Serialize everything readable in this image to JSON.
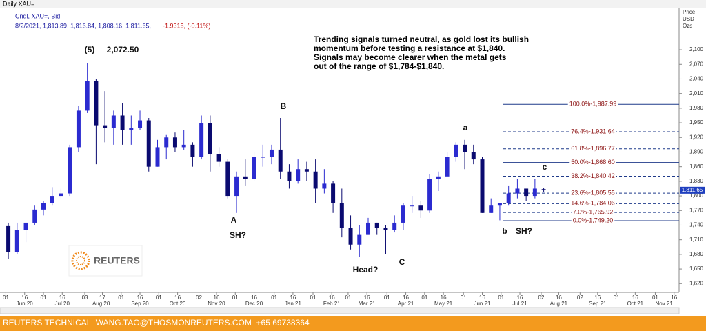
{
  "window_title": "Daily XAU=",
  "legend": {
    "study": "Cndl, XAU=, Bid",
    "quote": "8/2/2021, 1,813.89, 1,816.84, 1,808.16, 1,811.65,",
    "change": "-1.9315, (-0.11%)"
  },
  "logo": "REUTERS",
  "footer": "REUTERS TECHNICAL  WANG.TAO@THOSMONREUTERS.COM  +65 69738364",
  "chart_data": {
    "type": "candlestick",
    "up_color": "#2b2bd0",
    "down_color": "#0a0a70",
    "y_axis_title": [
      "Price",
      "USD",
      "Ozs"
    ],
    "xlim": [
      "2020-05-29",
      "2021-11-20"
    ],
    "ylim": [
      1602,
      2185
    ],
    "x": [
      "2020-06-01",
      "2020-06-08",
      "2020-06-15",
      "2020-06-22",
      "2020-06-29",
      "2020-07-06",
      "2020-07-13",
      "2020-07-20",
      "2020-07-27",
      "2020-08-03",
      "2020-08-10",
      "2020-08-17",
      "2020-08-24",
      "2020-08-31",
      "2020-09-07",
      "2020-09-14",
      "2020-09-21",
      "2020-09-28",
      "2020-10-05",
      "2020-10-12",
      "2020-10-19",
      "2020-10-26",
      "2020-11-02",
      "2020-11-09",
      "2020-11-16",
      "2020-11-23",
      "2020-11-30",
      "2020-12-07",
      "2020-12-14",
      "2020-12-21",
      "2020-12-28",
      "2021-01-04",
      "2021-01-11",
      "2021-01-18",
      "2021-01-25",
      "2021-02-01",
      "2021-02-08",
      "2021-02-15",
      "2021-02-22",
      "2021-03-01",
      "2021-03-08",
      "2021-03-15",
      "2021-03-22",
      "2021-03-29",
      "2021-04-05",
      "2021-04-12",
      "2021-04-19",
      "2021-04-26",
      "2021-05-03",
      "2021-05-10",
      "2021-05-17",
      "2021-05-24",
      "2021-05-31",
      "2021-06-07",
      "2021-06-14",
      "2021-06-21",
      "2021-06-28",
      "2021-07-05",
      "2021-07-12",
      "2021-07-19",
      "2021-07-26",
      "2021-08-02"
    ],
    "open": [
      1738,
      1685,
      1730,
      1745,
      1772,
      1785,
      1800,
      1805,
      1900,
      1975,
      2035,
      1945,
      1940,
      1965,
      1935,
      1940,
      1955,
      1860,
      1900,
      1920,
      1900,
      1905,
      1880,
      1950,
      1885,
      1870,
      1800,
      1840,
      1835,
      1880,
      1880,
      1895,
      1850,
      1830,
      1855,
      1850,
      1815,
      1825,
      1785,
      1735,
      1700,
      1720,
      1745,
      1735,
      1730,
      1745,
      1780,
      1780,
      1770,
      1835,
      1840,
      1880,
      1905,
      1890,
      1875,
      1765,
      1780,
      1785,
      1805,
      1815,
      1800,
      1813.89
    ],
    "high": [
      1745,
      1745,
      1745,
      1780,
      1790,
      1818,
      1815,
      1905,
      1985,
      2072.5,
      2040,
      2015,
      1975,
      1990,
      1965,
      1975,
      1960,
      1915,
      1925,
      1930,
      1935,
      1910,
      1965,
      1965,
      1900,
      1875,
      1850,
      1875,
      1890,
      1905,
      1905,
      1960,
      1865,
      1875,
      1870,
      1875,
      1855,
      1830,
      1815,
      1760,
      1740,
      1755,
      1745,
      1740,
      1760,
      1785,
      1800,
      1790,
      1845,
      1850,
      1890,
      1910,
      1915,
      1905,
      1880,
      1795,
      1785,
      1820,
      1835,
      1815,
      1835,
      1816.84
    ],
    "low": [
      1670,
      1680,
      1705,
      1740,
      1760,
      1780,
      1795,
      1800,
      1890,
      1970,
      1865,
      1910,
      1905,
      1905,
      1905,
      1935,
      1850,
      1860,
      1875,
      1890,
      1895,
      1860,
      1875,
      1850,
      1860,
      1795,
      1765,
      1820,
      1830,
      1860,
      1865,
      1835,
      1815,
      1825,
      1830,
      1785,
      1805,
      1765,
      1715,
      1690,
      1675,
      1720,
      1720,
      1680,
      1725,
      1730,
      1765,
      1755,
      1765,
      1810,
      1840,
      1870,
      1855,
      1865,
      1765,
      1765,
      1750,
      1780,
      1795,
      1790,
      1795,
      1808.16
    ],
    "close": [
      1685,
      1730,
      1745,
      1772,
      1785,
      1800,
      1805,
      1900,
      1975,
      2035,
      1945,
      1940,
      1965,
      1935,
      1940,
      1955,
      1860,
      1900,
      1920,
      1900,
      1905,
      1880,
      1950,
      1885,
      1870,
      1800,
      1840,
      1835,
      1880,
      1880,
      1895,
      1850,
      1830,
      1855,
      1850,
      1815,
      1825,
      1785,
      1735,
      1700,
      1720,
      1745,
      1735,
      1730,
      1745,
      1780,
      1780,
      1770,
      1835,
      1840,
      1880,
      1905,
      1890,
      1875,
      1765,
      1780,
      1785,
      1805,
      1815,
      1800,
      1815,
      1811.65
    ],
    "yticks": [
      {
        "value": 1620,
        "label": "1,620"
      },
      {
        "value": 1650,
        "label": "1,650"
      },
      {
        "value": 1680,
        "label": "1,680"
      },
      {
        "value": 1710,
        "label": "1,710"
      },
      {
        "value": 1740,
        "label": "1,740"
      },
      {
        "value": 1770,
        "label": "1,770"
      },
      {
        "value": 1800,
        "label": "1,800"
      },
      {
        "value": 1830,
        "label": "1,830"
      },
      {
        "value": 1860,
        "label": "1,860"
      },
      {
        "value": 1890,
        "label": "1,890"
      },
      {
        "value": 1920,
        "label": "1,920"
      },
      {
        "value": 1950,
        "label": "1,950"
      },
      {
        "value": 1980,
        "label": "1,980"
      },
      {
        "value": 2010,
        "label": "2,010"
      },
      {
        "value": 2040,
        "label": "2,040"
      },
      {
        "value": 2070,
        "label": "2,070"
      },
      {
        "value": 2100,
        "label": "2,100"
      }
    ],
    "xticks": [
      {
        "value": "2020-06-01",
        "label": "01"
      },
      {
        "value": "2020-06-16",
        "label": "16"
      },
      {
        "value": "2020-07-01",
        "label": "01"
      },
      {
        "value": "2020-07-16",
        "label": "16"
      },
      {
        "value": "2020-08-03",
        "label": "03"
      },
      {
        "value": "2020-08-17",
        "label": "17"
      },
      {
        "value": "2020-09-01",
        "label": "01"
      },
      {
        "value": "2020-09-16",
        "label": "16"
      },
      {
        "value": "2020-10-01",
        "label": "01"
      },
      {
        "value": "2020-10-16",
        "label": "16"
      },
      {
        "value": "2020-11-02",
        "label": "02"
      },
      {
        "value": "2020-11-16",
        "label": "16"
      },
      {
        "value": "2020-12-01",
        "label": "01"
      },
      {
        "value": "2020-12-16",
        "label": "16"
      },
      {
        "value": "2021-01-01",
        "label": "01"
      },
      {
        "value": "2021-01-16",
        "label": "16"
      },
      {
        "value": "2021-02-01",
        "label": "01"
      },
      {
        "value": "2021-02-16",
        "label": "16"
      },
      {
        "value": "2021-03-01",
        "label": "01"
      },
      {
        "value": "2021-03-16",
        "label": "16"
      },
      {
        "value": "2021-04-01",
        "label": "01"
      },
      {
        "value": "2021-04-16",
        "label": "16"
      },
      {
        "value": "2021-05-01",
        "label": "01"
      },
      {
        "value": "2021-05-16",
        "label": "16"
      },
      {
        "value": "2021-06-01",
        "label": "01"
      },
      {
        "value": "2021-06-16",
        "label": "16"
      },
      {
        "value": "2021-07-01",
        "label": "01"
      },
      {
        "value": "2021-07-16",
        "label": "16"
      },
      {
        "value": "2021-08-02",
        "label": "02"
      },
      {
        "value": "2021-08-16",
        "label": "16"
      },
      {
        "value": "2021-09-02",
        "label": "02"
      },
      {
        "value": "2021-09-16",
        "label": "16"
      },
      {
        "value": "2021-10-01",
        "label": "01"
      },
      {
        "value": "2021-10-16",
        "label": "16"
      },
      {
        "value": "2021-11-01",
        "label": "01"
      },
      {
        "value": "2021-11-16",
        "label": "16"
      }
    ],
    "month_labels": [
      {
        "value": "2020-06-16",
        "label": "Jun 20"
      },
      {
        "value": "2020-07-16",
        "label": "Jul 20"
      },
      {
        "value": "2020-08-16",
        "label": "Aug 20"
      },
      {
        "value": "2020-09-16",
        "label": "Sep 20"
      },
      {
        "value": "2020-10-16",
        "label": "Oct 20"
      },
      {
        "value": "2020-11-16",
        "label": "Nov 20"
      },
      {
        "value": "2020-12-16",
        "label": "Dec 20"
      },
      {
        "value": "2021-01-16",
        "label": "Jan 21"
      },
      {
        "value": "2021-02-16",
        "label": "Feb 21"
      },
      {
        "value": "2021-03-16",
        "label": "Mar 21"
      },
      {
        "value": "2021-04-16",
        "label": "Apr 21"
      },
      {
        "value": "2021-05-16",
        "label": "May 21"
      },
      {
        "value": "2021-06-16",
        "label": "Jun 21"
      },
      {
        "value": "2021-07-16",
        "label": "Jul 21"
      },
      {
        "value": "2021-08-16",
        "label": "Aug 21"
      },
      {
        "value": "2021-09-16",
        "label": "Sep 21"
      },
      {
        "value": "2021-10-16",
        "label": "Oct 21"
      },
      {
        "value": "2021-11-08",
        "label": "Nov 21"
      }
    ],
    "levels": [
      {
        "value": 1987.99,
        "label": "100.0%-1,987.99",
        "style": "solid"
      },
      {
        "value": 1931.64,
        "label": "76.4%-1,931.64",
        "style": "dashed"
      },
      {
        "value": 1896.77,
        "label": "61.8%-1,896.77",
        "style": "dashed"
      },
      {
        "value": 1868.6,
        "label": "50.0%-1,868.60",
        "style": "solid"
      },
      {
        "value": 1840.42,
        "label": "38.2%-1,840.42",
        "style": "dashed"
      },
      {
        "value": 1805.55,
        "label": "23.6%-1,805.55",
        "style": "dashed"
      },
      {
        "value": 1784.06,
        "label": "14.6%-1,784.06",
        "style": "dashed"
      },
      {
        "value": 1765.92,
        "label": "7.0%-1,765.92",
        "style": "dashed"
      },
      {
        "value": 1749.2,
        "label": "0.0%-1,749.20",
        "style": "solid"
      }
    ],
    "level_color": "#1f3a8a",
    "level_label_color": "#8b1010",
    "last_price": {
      "value": 1811.65,
      "label": "1,811.65"
    },
    "annotations": [
      "(5)",
      "2,072.50",
      "B",
      "A",
      "SH?",
      "Head?",
      "C",
      "a",
      "b",
      "SH?",
      "c"
    ],
    "comment": [
      "Trending signals turned neutral, as gold lost its bullish",
      "momentum before testing a resistance at $1,840.",
      "Signals may become clearer when the metal gets",
      "out of the range of $1,784-$1,840."
    ]
  }
}
